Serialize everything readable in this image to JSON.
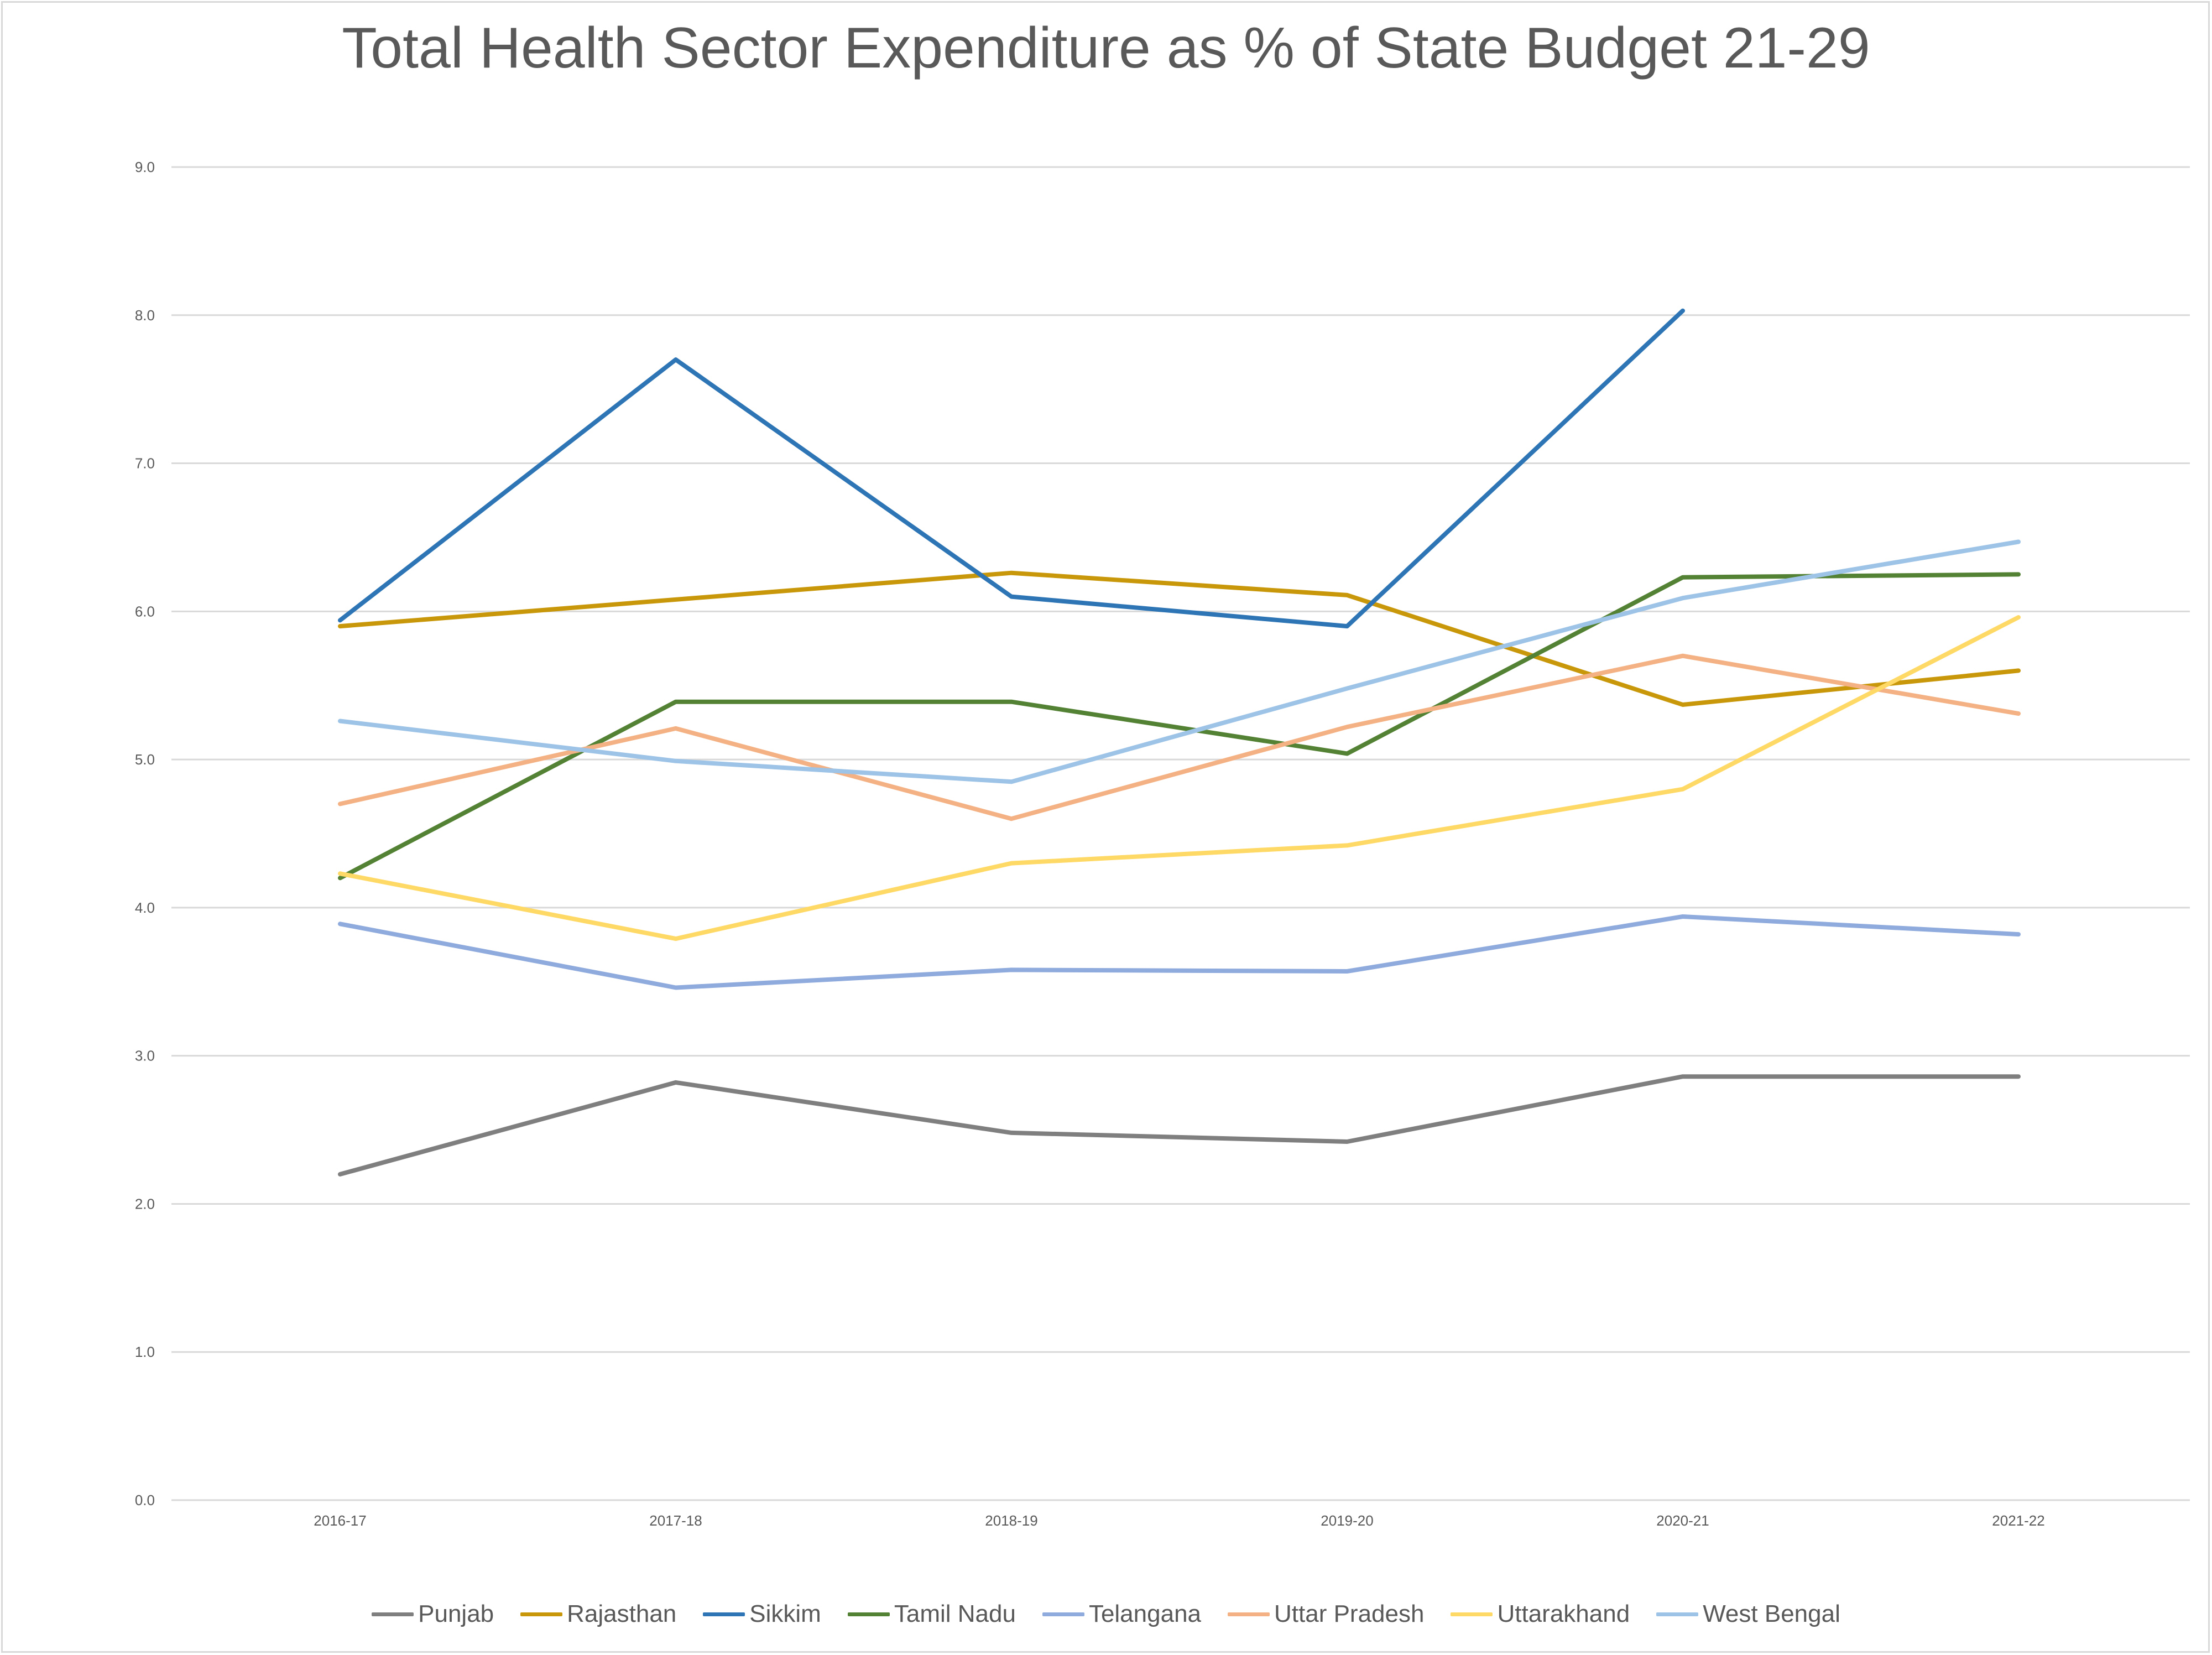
{
  "chart_data": {
    "type": "line",
    "title": "Total Health Sector Expenditure as % of State Budget 21-29",
    "xlabel": "",
    "ylabel": "",
    "categories": [
      "2016-17",
      "2017-18",
      "2018-19",
      "2019-20",
      "2020-21",
      "2021-22"
    ],
    "ylim": [
      0,
      9
    ],
    "yticks": [
      "0.0",
      "1.0",
      "2.0",
      "3.0",
      "4.0",
      "5.0",
      "6.0",
      "7.0",
      "8.0",
      "9.0"
    ],
    "grid": true,
    "legend_position": "bottom",
    "series": [
      {
        "name": "Punjab",
        "color": "#7f7f7f",
        "values": [
          2.2,
          2.82,
          2.48,
          2.42,
          2.86,
          2.86
        ]
      },
      {
        "name": "Rajasthan",
        "color": "#c9980a",
        "values": [
          5.9,
          6.08,
          6.26,
          6.11,
          5.37,
          5.6
        ]
      },
      {
        "name": "Sikkim",
        "color": "#2e75b6",
        "values": [
          5.94,
          7.7,
          6.1,
          5.9,
          8.03,
          null
        ]
      },
      {
        "name": "Tamil Nadu",
        "color": "#548235",
        "values": [
          4.2,
          5.39,
          5.39,
          5.04,
          6.23,
          6.25
        ]
      },
      {
        "name": "Telangana",
        "color": "#8faadc",
        "values": [
          3.89,
          3.46,
          3.58,
          3.57,
          3.94,
          3.82
        ]
      },
      {
        "name": "Uttar Pradesh",
        "color": "#f4b183",
        "values": [
          4.7,
          5.21,
          4.6,
          5.22,
          5.7,
          5.31
        ]
      },
      {
        "name": "Uttarakhand",
        "color": "#ffd966",
        "values": [
          4.23,
          3.79,
          4.3,
          4.42,
          4.8,
          5.96
        ]
      },
      {
        "name": "West Bengal",
        "color": "#9dc3e6",
        "values": [
          5.26,
          4.99,
          4.85,
          5.48,
          6.09,
          6.47
        ]
      }
    ]
  }
}
